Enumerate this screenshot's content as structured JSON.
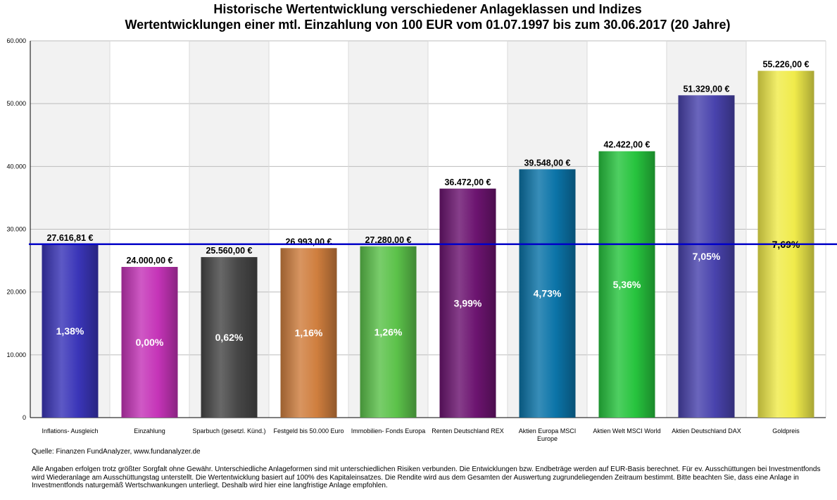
{
  "page": {
    "title_line1": "Historische Wertentwicklung verschiedener Anlageklassen und Indizes",
    "title_line2": "Wertentwicklungen einer mtl. Einzahlung von 100 EUR vom 01.07.1997 bis zum 30.06.2017 (20 Jahre)",
    "source": "Quelle: Finanzen FundAnalyzer, www.fundanalyzer.de",
    "disclaimer": "Alle Angaben erfolgen trotz größter Sorgfalt ohne Gewähr. Unterschiedliche Anlageformen sind mit unterschiedlichen Risiken verbunden. Die Entwicklungen bzw. Endbeträge werden auf EUR-Basis berechnet. Für ev. Ausschüttungen bei Investmentfonds wird Wiederanlage am Ausschüttungstag unterstellt. Die Wertentwicklung basiert auf 100% des Kapitaleinsatzes. Die Rendite wird aus dem Gesamten der Auswertung zugrundeliegenden Zeitraum bestimmt. Bitte beachten Sie, dass eine Anlage in Investmentfonds naturgemäß Wertschwankungen unterliegt. Deshalb wird hier eine langfristige Anlage empfohlen."
  },
  "chart_data": {
    "type": "bar",
    "title": "Historische Wertentwicklung verschiedener Anlageklassen und Indizes",
    "subtitle": "Wertentwicklungen einer mtl. Einzahlung von 100 EUR vom 01.07.1997 bis zum 30.06.2017 (20 Jahre)",
    "xlabel": "",
    "ylabel": "",
    "ylim": [
      0,
      60000
    ],
    "yticks": [
      0,
      10000,
      20000,
      30000,
      40000,
      50000,
      60000
    ],
    "ytick_labels": [
      "0",
      "10.000",
      "20.000",
      "30.000",
      "40.000",
      "50.000",
      "60.000"
    ],
    "grid": true,
    "categories": [
      [
        "Inflations- Ausgleich"
      ],
      [
        "Einzahlung"
      ],
      [
        "Sparbuch (gesetzl. Künd.)"
      ],
      [
        "Festgeld bis 50.000 Euro"
      ],
      [
        "Immobilien- Fonds Europa"
      ],
      [
        "Renten Deutschland REX"
      ],
      [
        "Aktien Europa MSCI",
        "Europe"
      ],
      [
        "Aktien Welt MSCI World"
      ],
      [
        "Aktien Deutschland DAX"
      ],
      [
        "Goldpreis"
      ]
    ],
    "values": [
      27616.81,
      24000.0,
      25560.0,
      26993.0,
      27280.0,
      36472.0,
      39548.0,
      42422.0,
      51329.0,
      55226.0
    ],
    "value_labels": [
      "27.616,81 €",
      "24.000,00 €",
      "25.560,00 €",
      "26.993,00 €",
      "27.280,00 €",
      "36.472,00 €",
      "39.548,00 €",
      "42.422,00 €",
      "51.329,00 €",
      "55.226,00 €"
    ],
    "returns": [
      "1,38%",
      "0,00%",
      "0,62%",
      "1,16%",
      "1,26%",
      "3,99%",
      "4,73%",
      "5,36%",
      "7,05%",
      "7,69%"
    ],
    "colors": [
      "#3a35b8",
      "#c534b8",
      "#474747",
      "#cf7e3e",
      "#5cc24a",
      "#6c1470",
      "#0b74a8",
      "#27c43e",
      "#4943ad",
      "#f0eb4b"
    ],
    "reference_line": {
      "value": 27616.81,
      "color": "#0000c8"
    }
  }
}
